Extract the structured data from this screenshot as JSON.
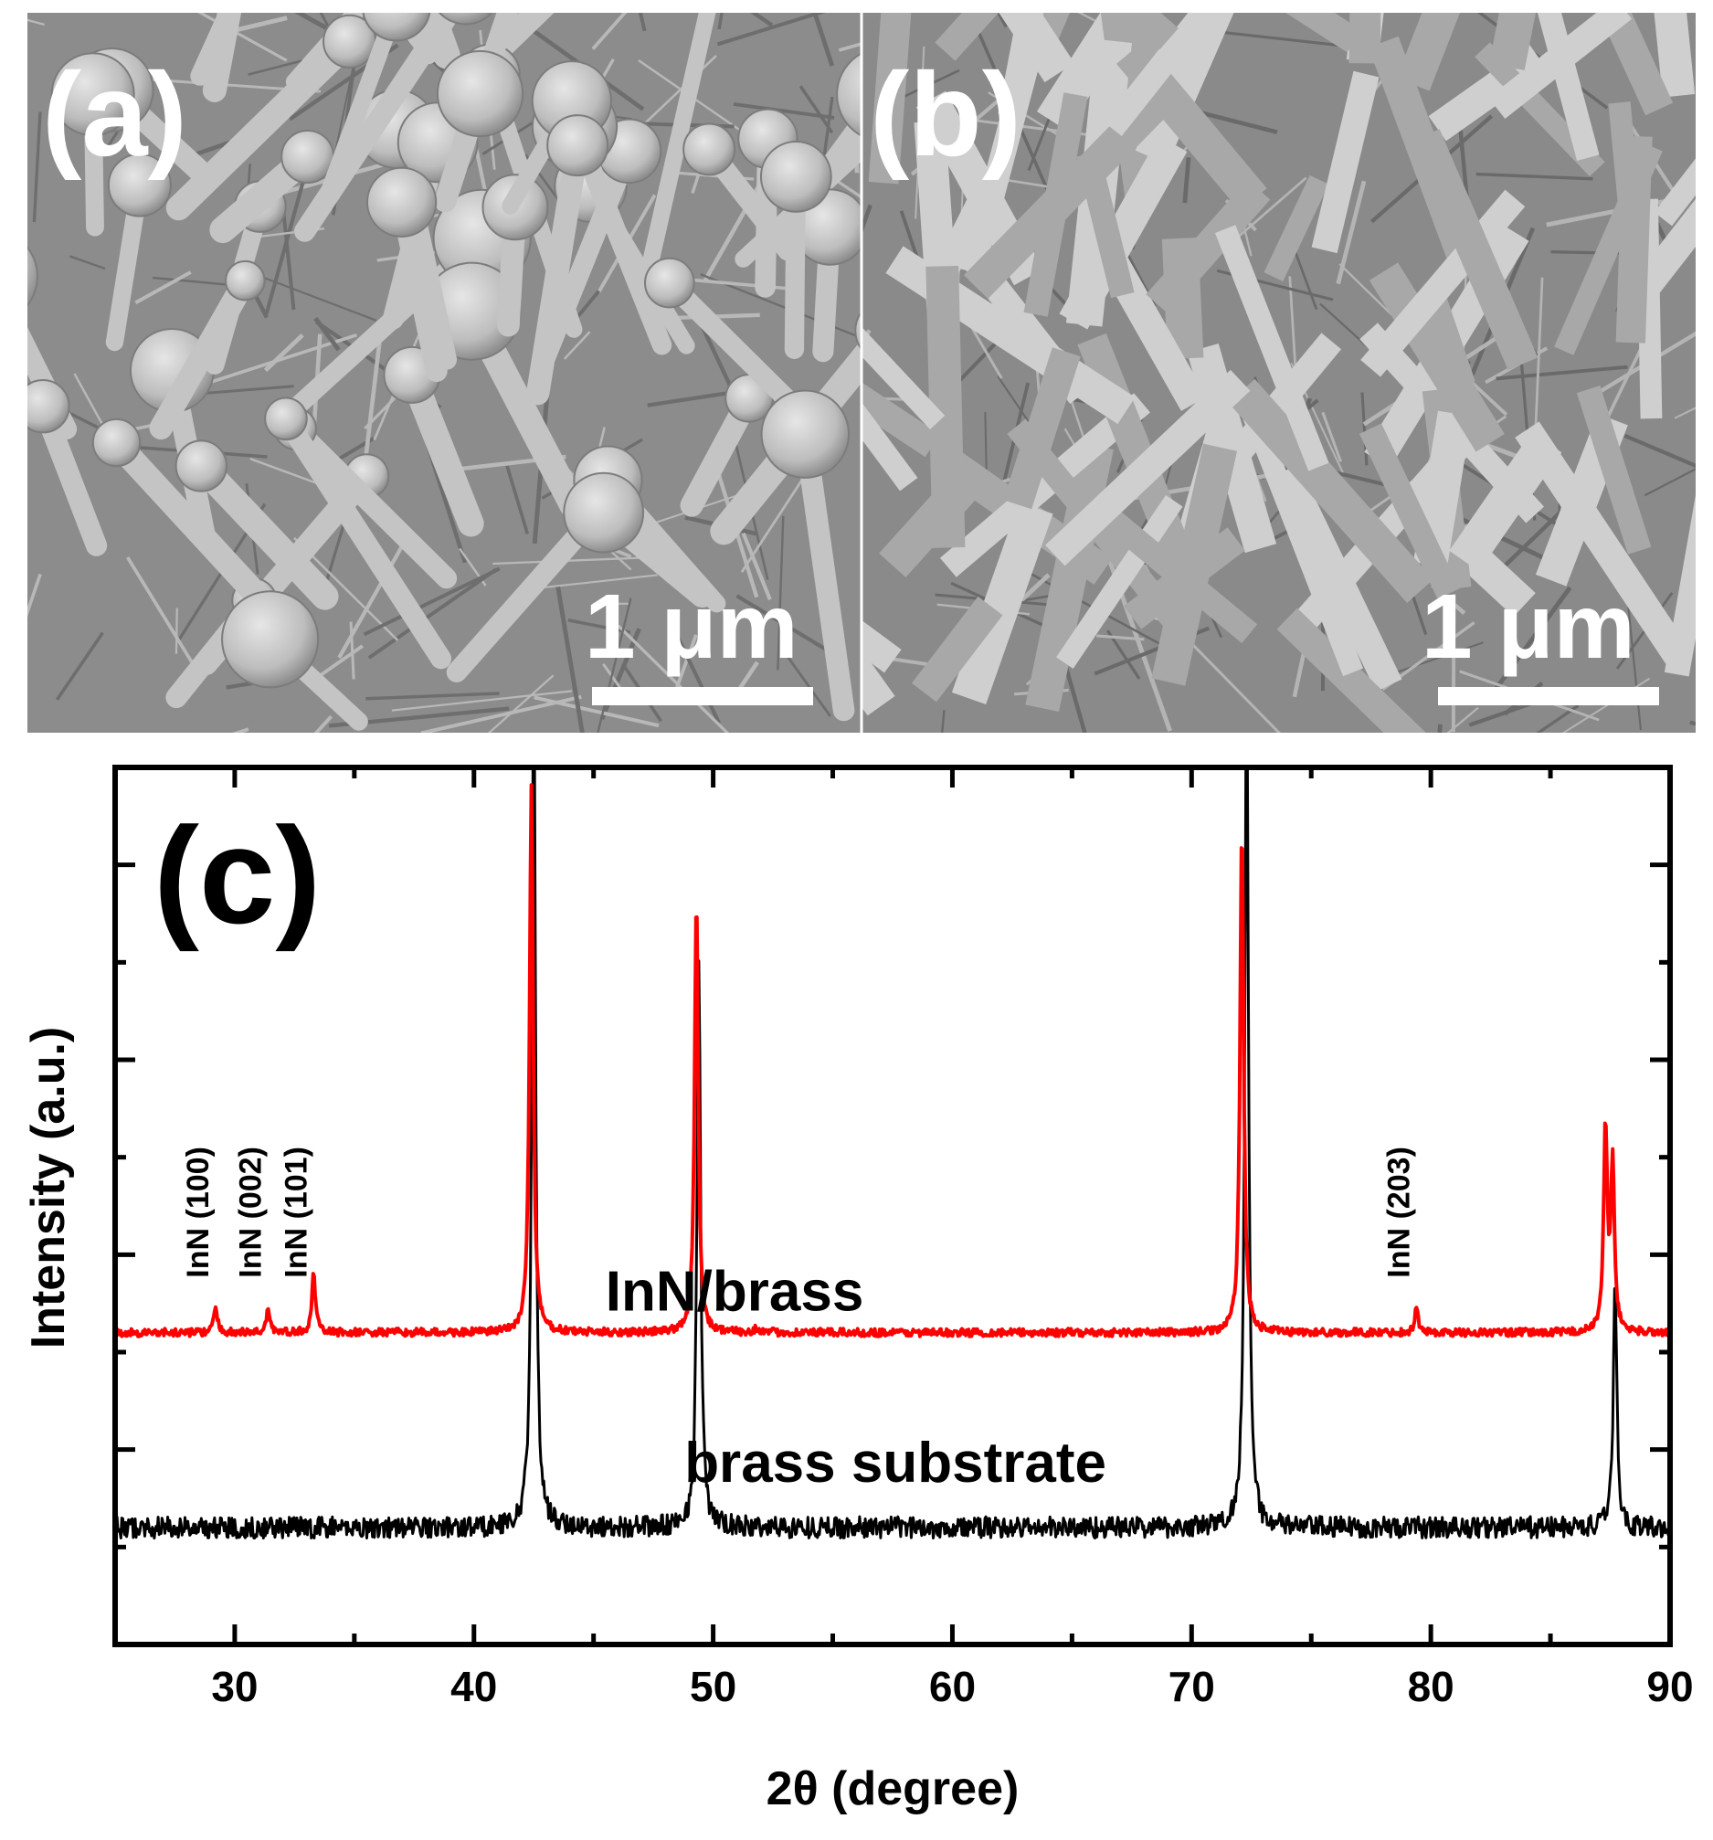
{
  "panels": {
    "a": {
      "label": "(a)",
      "scale_bar": "1 μm"
    },
    "b": {
      "label": "(b)",
      "scale_bar": "1 μm"
    },
    "c": {
      "label": "(c)"
    }
  },
  "colors": {
    "inn_brass": "#ff0000",
    "brass_substrate": "#000000",
    "sem_background": "#8a8a8a",
    "sem_highlight": "#d4d4d4"
  },
  "chart_data": {
    "type": "line",
    "xlabel": "2θ (degree)",
    "ylabel": "Intensity (a.u.)",
    "xlim": [
      25,
      90
    ],
    "xticks": [
      30,
      40,
      50,
      60,
      70,
      80,
      90
    ],
    "y_ticks_labeled": false,
    "ylim_relative": [
      0,
      9
    ],
    "series": [
      {
        "name": "InN/brass",
        "color": "#ff0000",
        "baseline": 3.2,
        "peaks": [
          {
            "x": 29.2,
            "height": 0.25
          },
          {
            "x": 31.4,
            "height": 0.25
          },
          {
            "x": 33.3,
            "height": 0.6
          },
          {
            "x": 42.4,
            "height": 5.6
          },
          {
            "x": 49.3,
            "height": 4.5
          },
          {
            "x": 51.8,
            "height": 0.05
          },
          {
            "x": 72.1,
            "height": 5.2
          },
          {
            "x": 79.4,
            "height": 0.25
          },
          {
            "x": 87.3,
            "height": 2.1
          },
          {
            "x": 87.6,
            "height": 1.7
          }
        ]
      },
      {
        "name": "brass substrate",
        "color": "#000000",
        "baseline": 1.2,
        "peaks": [
          {
            "x": 42.5,
            "height": 9.0
          },
          {
            "x": 49.4,
            "height": 5.9
          },
          {
            "x": 72.3,
            "height": 9.0
          },
          {
            "x": 87.7,
            "height": 2.5
          }
        ]
      }
    ],
    "annotations": [
      {
        "text": "InN (100)",
        "x": 29.2
      },
      {
        "text": "InN (002)",
        "x": 31.4
      },
      {
        "text": "InN (101)",
        "x": 33.3
      },
      {
        "text": "InN (203)",
        "x": 79.4
      }
    ],
    "series_labels": [
      {
        "text": "InN/brass",
        "series": 0
      },
      {
        "text": "brass substrate",
        "series": 1
      }
    ]
  }
}
